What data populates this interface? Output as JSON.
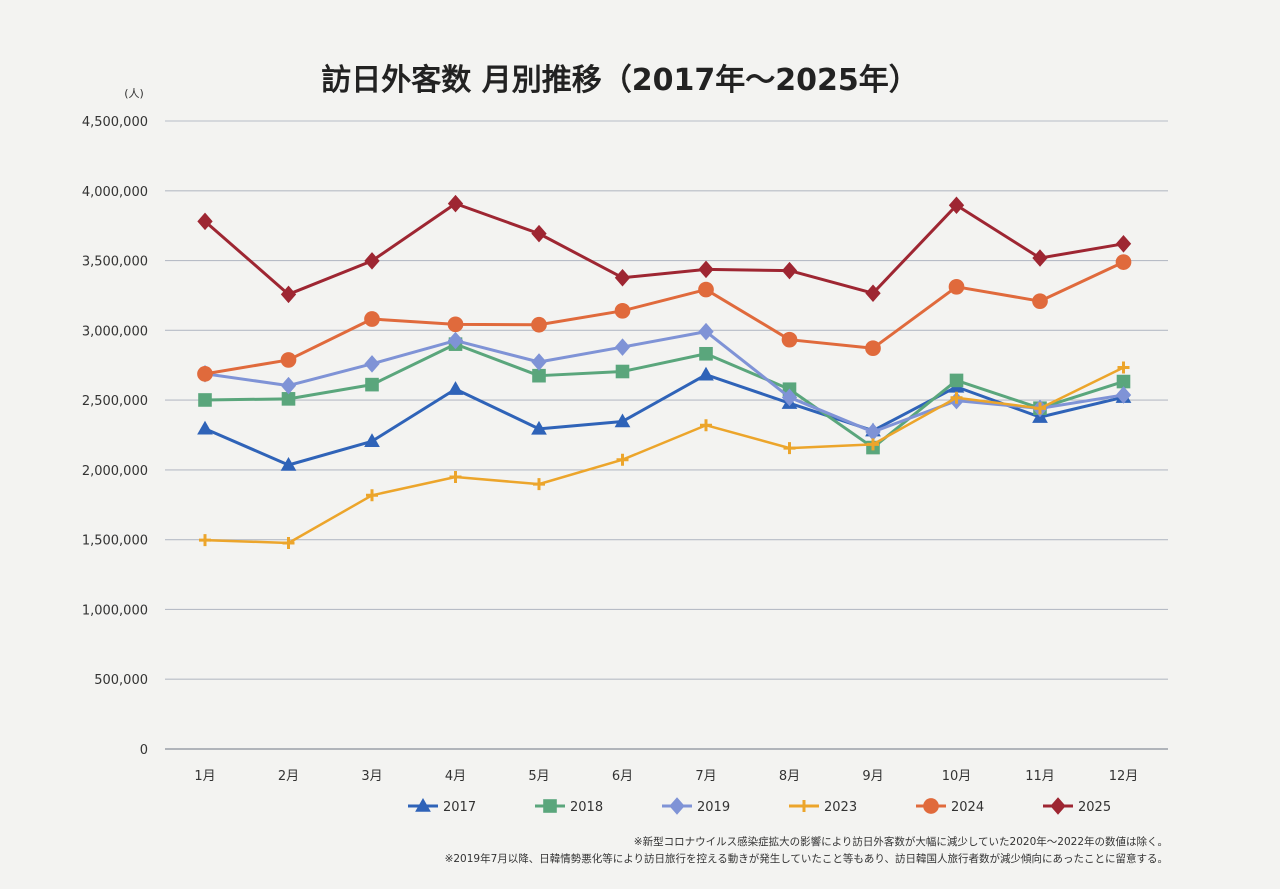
{
  "colors": {
    "2017": "#2f63b8",
    "2018": "#5aa67c",
    "2019": "#7f93d6",
    "2023": "#eca52b",
    "2024": "#e06a3c",
    "2025": "#9e2632"
  },
  "chart_data": {
    "type": "line",
    "title": "訪日外客数 月別推移（2017年～2025年）",
    "unit": "(人)",
    "categories": [
      "1月",
      "2月",
      "3月",
      "4月",
      "5月",
      "6月",
      "7月",
      "8月",
      "9月",
      "10月",
      "11月",
      "12月"
    ],
    "ylim": [
      0,
      4500000
    ],
    "yticks": [
      0,
      500000,
      1000000,
      1500000,
      2000000,
      2500000,
      3000000,
      3500000,
      4000000,
      4500000
    ],
    "ytick_labels": [
      "0",
      "500,000",
      "1,000,000",
      "1,500,000",
      "2,000,000",
      "2,500,000",
      "3,000,000",
      "3,500,000",
      "4,000,000",
      "4,500,000"
    ],
    "grid": true,
    "legend_position": "bottom",
    "series": [
      {
        "name": "2017",
        "marker": "triangle",
        "values": [
          2295000,
          2035000,
          2205000,
          2579000,
          2294000,
          2347000,
          2682000,
          2478000,
          2281000,
          2595000,
          2378000,
          2521000
        ]
      },
      {
        "name": "2018",
        "marker": "square",
        "values": [
          2501000,
          2509000,
          2611000,
          2901000,
          2675000,
          2705000,
          2832000,
          2578000,
          2160000,
          2641000,
          2442000,
          2633000
        ]
      },
      {
        "name": "2019",
        "marker": "diamond",
        "values": [
          2689000,
          2604000,
          2760000,
          2927000,
          2773000,
          2880000,
          2991000,
          2520000,
          2272000,
          2496000,
          2441000,
          2537000
        ]
      },
      {
        "name": "2023",
        "marker": "cross",
        "values": [
          1497000,
          1476000,
          1818000,
          1949000,
          1898000,
          2073000,
          2320000,
          2156000,
          2183000,
          2517000,
          2441000,
          2734000
        ]
      },
      {
        "name": "2024",
        "marker": "circle",
        "values": [
          2688000,
          2788000,
          3081000,
          3043000,
          3040000,
          3140000,
          3292000,
          2933000,
          2872000,
          3312000,
          3209000,
          3489000
        ]
      },
      {
        "name": "2025",
        "marker": "diamond",
        "values": [
          3781000,
          3258000,
          3498000,
          3908000,
          3693000,
          3377000,
          3437000,
          3428000,
          3266000,
          3896000,
          3518000,
          3620000
        ]
      }
    ],
    "notes": [
      "※新型コロナウイルス感染症拡大の影響により訪日外客数が大幅に減少していた2020年～2022年の数値は除く。",
      "※2019年7月以降、日韓情勢悪化等により訪日旅行を控える動きが発生していたこと等もあり、訪日韓国人旅行者数が減少傾向にあったことに留意する。"
    ]
  }
}
